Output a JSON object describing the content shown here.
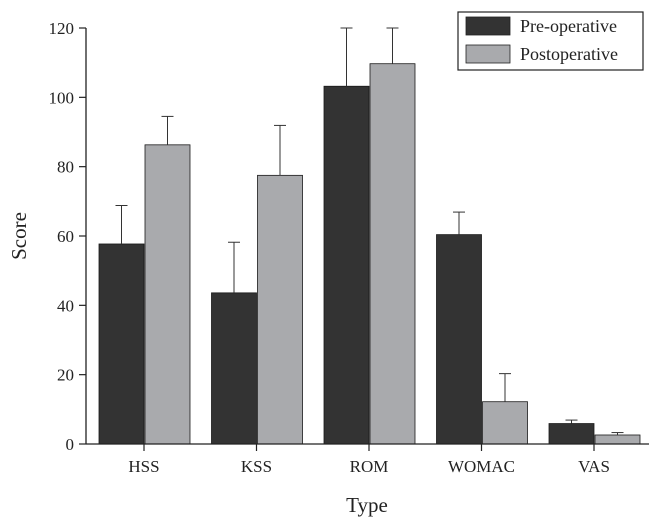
{
  "chart_data": {
    "type": "bar",
    "title": "",
    "xlabel": "Type",
    "ylabel": "Score",
    "categories": [
      "HSS",
      "KSS",
      "ROM",
      "WOMAC",
      "VAS"
    ],
    "ylim": [
      0,
      120
    ],
    "yticks": [
      0,
      20,
      40,
      60,
      80,
      100,
      120
    ],
    "ytick_labels": [
      "0",
      "20",
      "40",
      "60",
      "80",
      "100",
      "120"
    ],
    "legend_position": "top-right",
    "grid": false,
    "series": [
      {
        "name": "Pre-operative",
        "color": "#333333",
        "values": [
          57.7,
          43.6,
          103.2,
          60.4,
          5.9
        ],
        "errors": [
          11.1,
          14.6,
          17.0,
          6.5,
          1.0
        ]
      },
      {
        "name": "Postoperative",
        "color": "#a9aaad",
        "values": [
          86.3,
          77.5,
          109.7,
          12.2,
          2.6
        ],
        "errors": [
          8.2,
          14.4,
          10.5,
          8.1,
          0.7
        ]
      }
    ]
  }
}
